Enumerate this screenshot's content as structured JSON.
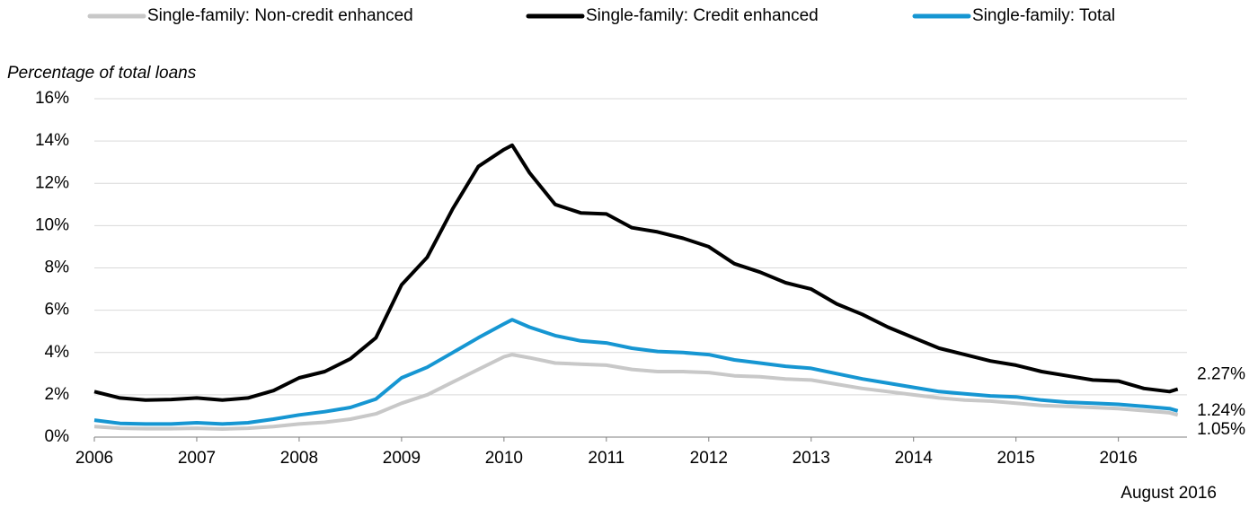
{
  "chart_data": {
    "type": "line",
    "y_label": "Percentage of total loans",
    "note": "August 2016",
    "x": [
      2006,
      2006.25,
      2006.5,
      2006.75,
      2007,
      2007.25,
      2007.5,
      2007.75,
      2008,
      2008.25,
      2008.5,
      2008.75,
      2009,
      2009.25,
      2009.5,
      2009.75,
      2010,
      2010.08,
      2010.25,
      2010.5,
      2010.75,
      2011,
      2011.25,
      2011.5,
      2011.75,
      2012,
      2012.25,
      2012.5,
      2012.75,
      2013,
      2013.25,
      2013.5,
      2013.75,
      2014,
      2014.25,
      2014.5,
      2014.75,
      2015,
      2015.25,
      2015.5,
      2015.75,
      2016,
      2016.25,
      2016.5,
      2016.58
    ],
    "series": [
      {
        "name": "Single-family: Non-credit enhanced",
        "color": "#c8c8c8",
        "end_label": "1.05%",
        "values": [
          0.5,
          0.42,
          0.4,
          0.4,
          0.42,
          0.38,
          0.42,
          0.5,
          0.62,
          0.7,
          0.85,
          1.1,
          1.6,
          2.0,
          2.6,
          3.2,
          3.8,
          3.9,
          3.75,
          3.5,
          3.45,
          3.4,
          3.2,
          3.1,
          3.1,
          3.05,
          2.9,
          2.85,
          2.75,
          2.7,
          2.5,
          2.3,
          2.15,
          2.0,
          1.85,
          1.75,
          1.7,
          1.6,
          1.5,
          1.45,
          1.4,
          1.35,
          1.25,
          1.15,
          1.05
        ]
      },
      {
        "name": "Single-family: Credit enhanced",
        "color": "#000000",
        "end_label": "2.27%",
        "values": [
          2.15,
          1.85,
          1.75,
          1.78,
          1.85,
          1.75,
          1.85,
          2.2,
          2.8,
          3.1,
          3.7,
          4.7,
          7.2,
          8.5,
          10.8,
          12.8,
          13.6,
          13.8,
          12.5,
          11.0,
          10.6,
          10.55,
          9.9,
          9.7,
          9.4,
          9.0,
          8.2,
          7.8,
          7.3,
          7.0,
          6.3,
          5.8,
          5.2,
          4.7,
          4.2,
          3.9,
          3.6,
          3.4,
          3.1,
          2.9,
          2.7,
          2.65,
          2.3,
          2.15,
          2.27
        ]
      },
      {
        "name": "Single-family: Total",
        "color": "#1696d2",
        "end_label": "1.24%",
        "values": [
          0.8,
          0.65,
          0.62,
          0.62,
          0.68,
          0.62,
          0.68,
          0.85,
          1.05,
          1.2,
          1.4,
          1.8,
          2.8,
          3.3,
          4.0,
          4.7,
          5.35,
          5.55,
          5.2,
          4.8,
          4.55,
          4.45,
          4.2,
          4.05,
          4.0,
          3.9,
          3.65,
          3.5,
          3.35,
          3.25,
          3.0,
          2.75,
          2.55,
          2.35,
          2.15,
          2.05,
          1.95,
          1.9,
          1.75,
          1.65,
          1.6,
          1.55,
          1.45,
          1.35,
          1.24
        ]
      }
    ],
    "xlim": [
      2006,
      2016.67
    ],
    "xticks": [
      2006,
      2007,
      2008,
      2009,
      2010,
      2011,
      2012,
      2013,
      2014,
      2015,
      2016
    ],
    "ylim": [
      0,
      16
    ],
    "yticks": [
      {
        "value": 0,
        "label": "0%"
      },
      {
        "value": 2,
        "label": "2%"
      },
      {
        "value": 4,
        "label": "4%"
      },
      {
        "value": 6,
        "label": "6%"
      },
      {
        "value": 8,
        "label": "8%"
      },
      {
        "value": 10,
        "label": "10%"
      },
      {
        "value": 12,
        "label": "12%"
      },
      {
        "value": 14,
        "label": "14%"
      },
      {
        "value": 16,
        "label": "16%"
      }
    ],
    "grid": true,
    "legend": "top"
  }
}
